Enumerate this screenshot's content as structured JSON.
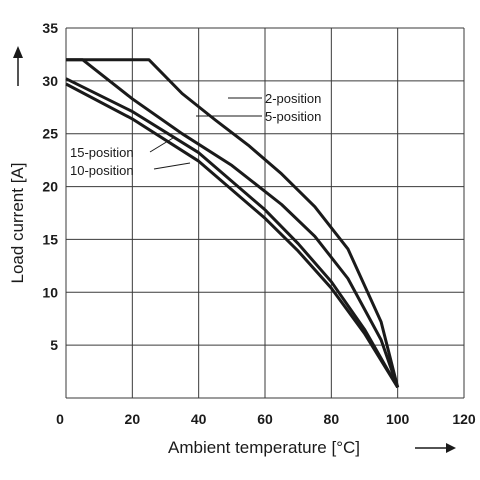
{
  "chart_data": {
    "type": "line",
    "title": "",
    "xlabel": "Ambient temperature [°C]",
    "ylabel": "Load current [A]",
    "xlim": [
      0,
      120
    ],
    "ylim": [
      0,
      35
    ],
    "xticks": [
      0,
      20,
      40,
      60,
      80,
      100,
      120
    ],
    "yticks": [
      0,
      5,
      10,
      15,
      20,
      25,
      30,
      35
    ],
    "grid": true,
    "series": [
      {
        "name": "2-position",
        "x": [
          0,
          25,
          35,
          45,
          55,
          65,
          75,
          85,
          95,
          100
        ],
        "y": [
          32,
          32,
          28.8,
          26.3,
          23.9,
          21.2,
          18.1,
          14.1,
          7.2,
          1
        ]
      },
      {
        "name": "5-position",
        "x": [
          0,
          5,
          20,
          35,
          50,
          65,
          75,
          85,
          95,
          100
        ],
        "y": [
          32,
          32,
          28.3,
          25,
          22,
          18.3,
          15.3,
          11.3,
          5.5,
          1
        ]
      },
      {
        "name": "15-position",
        "x": [
          0,
          20,
          40,
          60,
          70,
          80,
          90,
          100
        ],
        "y": [
          30.2,
          27.1,
          23.2,
          17.8,
          14.6,
          11,
          6.5,
          1
        ]
      },
      {
        "name": "10-position",
        "x": [
          0,
          20,
          40,
          60,
          70,
          80,
          90,
          100
        ],
        "y": [
          29.7,
          26.4,
          22.4,
          17,
          13.9,
          10.4,
          6.1,
          1
        ]
      }
    ]
  }
}
